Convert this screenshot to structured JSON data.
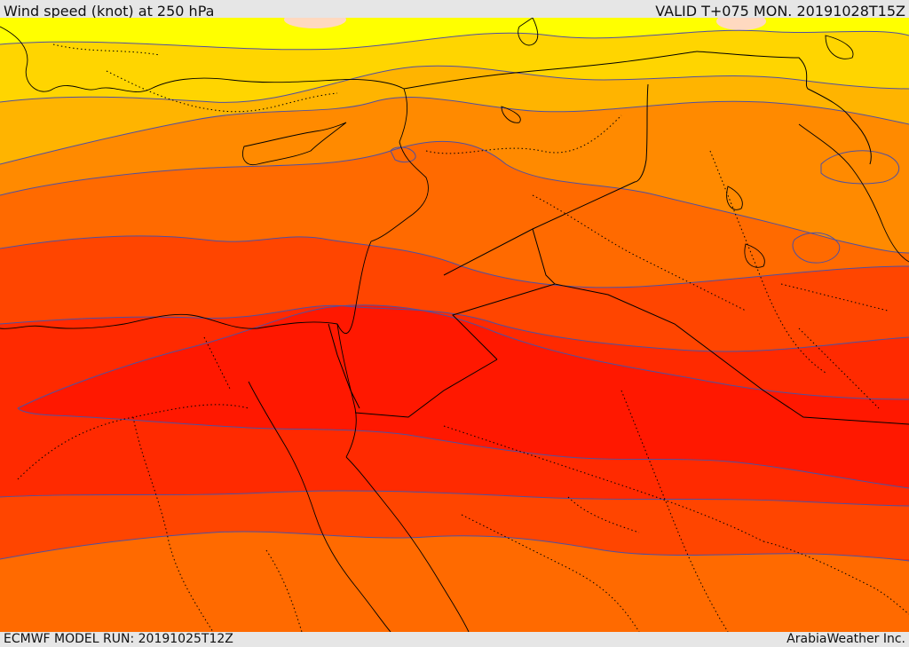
{
  "header": {
    "title": "Wind speed (knot) at 250 hPa",
    "valid": "VALID T+075 MON. 20191028T15Z"
  },
  "footer": {
    "model_run": "ECMWF MODEL RUN: 20191025T12Z",
    "credit": "ArabiaWeather Inc."
  },
  "colors": {
    "band_1": "#ffff00",
    "band_2": "#ffd500",
    "band_3": "#ffb400",
    "band_4": "#ff8a00",
    "band_5": "#ff6a00",
    "band_6": "#ff4500",
    "band_7": "#ff2a00",
    "band_8": "#ff1800",
    "peak": "#ffd9c0",
    "contour": "#5050a0",
    "boundary": "#000000"
  }
}
